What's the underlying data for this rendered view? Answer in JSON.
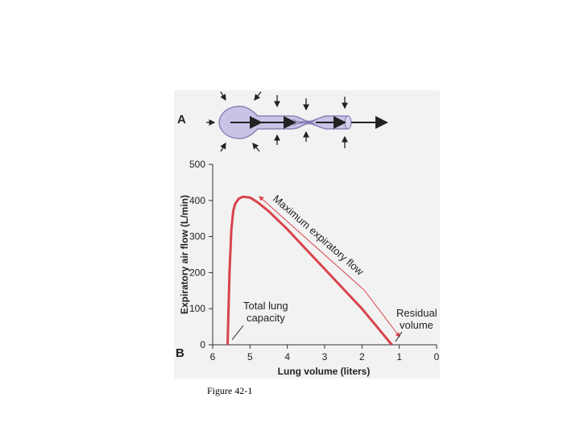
{
  "figure": {
    "panel_a_label": "A",
    "panel_b_label": "B",
    "caption": "Figure 42-1",
    "colors": {
      "panel_bg": "#f2f2f2",
      "curve": "#d9434b",
      "tube_fill": "#c9c4e6",
      "tube_stroke": "#8a84b8",
      "axis": "#333333"
    }
  },
  "chart_data": {
    "type": "line",
    "xlabel": "Lung volume (liters)",
    "ylabel": "Expiratory air flow (L/min)",
    "xlim": [
      6,
      0
    ],
    "ylim": [
      0,
      500
    ],
    "x_ticks": [
      "6",
      "5",
      "4",
      "3",
      "2",
      "1",
      "0"
    ],
    "x_tick_values": [
      6,
      5,
      4,
      3,
      2,
      1,
      0
    ],
    "y_ticks": [
      "0",
      "100",
      "200",
      "300",
      "400",
      "500"
    ],
    "y_tick_values": [
      0,
      100,
      200,
      300,
      400,
      500
    ],
    "series": [
      {
        "x": [
          5.6,
          5.55,
          5.5,
          5.45,
          5.4,
          5.3,
          5.2,
          5.0,
          4.8,
          4.5,
          4.0,
          3.5,
          3.0,
          2.5,
          2.0,
          1.8,
          1.6,
          1.4,
          1.2
        ],
        "y": [
          0,
          200,
          320,
          370,
          390,
          405,
          410,
          408,
          395,
          370,
          320,
          265,
          210,
          155,
          100,
          75,
          50,
          25,
          0
        ]
      }
    ],
    "annotations": {
      "max_flow": "Maximum expiratory flow",
      "tlc_line1": "Total lung",
      "tlc_line2": "capacity",
      "rv_line1": "Residual",
      "rv_line2": "volume"
    }
  }
}
